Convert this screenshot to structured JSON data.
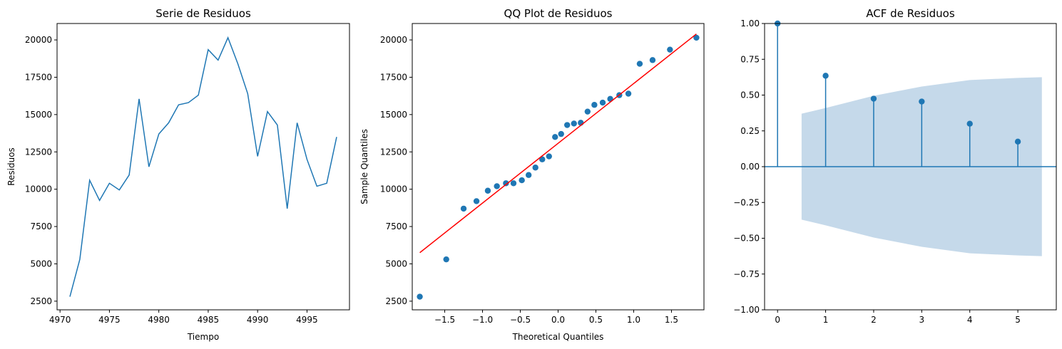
{
  "colors": {
    "series": "#1f77b4",
    "reference_line": "#ff0000",
    "confidence_band": "#c5d9ea",
    "background": "#ffffff"
  },
  "chart_data": [
    {
      "type": "line",
      "title": "Serie de Residuos",
      "xlabel": "Tiempo",
      "ylabel": "Residuos",
      "xlim": [
        4969.7,
        4999.3
      ],
      "ylim": [
        1920,
        21100
      ],
      "xticks": [
        4970,
        4975,
        4980,
        4985,
        4990,
        4995
      ],
      "yticks": [
        2500,
        5000,
        7500,
        10000,
        12500,
        15000,
        17500,
        20000
      ],
      "grid": false,
      "series": [
        {
          "x": [
            4971,
            4972,
            4973,
            4974,
            4975,
            4976,
            4977,
            4978,
            4979,
            4980,
            4981,
            4982,
            4983,
            4984,
            4985,
            4986,
            4987,
            4988,
            4989,
            4990,
            4991,
            4992,
            4993,
            4994,
            4995,
            4996,
            4997,
            4998
          ],
          "values": [
            2800,
            5300,
            10600,
            9250,
            10400,
            9950,
            10950,
            16050,
            11500,
            13700,
            14450,
            15650,
            15800,
            16300,
            19350,
            18650,
            20150,
            18400,
            16400,
            12200,
            15200,
            14300,
            8700,
            14450,
            12000,
            10200,
            10400,
            13500
          ]
        }
      ]
    },
    {
      "type": "scatter",
      "title": "QQ Plot de Residuos",
      "xlabel": "Theoretical Quantiles",
      "ylabel": "Sample Quantiles",
      "xlim": [
        -1.93,
        1.93
      ],
      "ylim": [
        1920,
        21100
      ],
      "xticks": [
        -1.5,
        -1.0,
        -0.5,
        0.0,
        0.5,
        1.0,
        1.5
      ],
      "xtick_labels": [
        "−1.5",
        "−1.0",
        "−0.5",
        "0.0",
        "0.5",
        "1.0",
        "1.5"
      ],
      "yticks": [
        2500,
        5000,
        7500,
        10000,
        12500,
        15000,
        17500,
        20000
      ],
      "grid": false,
      "series": [
        {
          "x": [
            -1.83,
            -1.48,
            -1.25,
            -1.08,
            -0.93,
            -0.81,
            -0.69,
            -0.59,
            -0.48,
            -0.39,
            -0.3,
            -0.21,
            -0.12,
            -0.04,
            0.04,
            0.12,
            0.21,
            0.3,
            0.39,
            0.48,
            0.59,
            0.69,
            0.81,
            0.93,
            1.08,
            1.25,
            1.48,
            1.83
          ],
          "values": [
            2800,
            5300,
            8700,
            9200,
            9900,
            10200,
            10400,
            10400,
            10600,
            10950,
            11450,
            12000,
            12200,
            13500,
            13700,
            14300,
            14400,
            14450,
            15200,
            15650,
            15800,
            16050,
            16300,
            16400,
            18400,
            18650,
            19350,
            20150
          ]
        }
      ],
      "reference_line": {
        "x": [
          -1.83,
          1.83
        ],
        "values": [
          5750,
          20400
        ]
      }
    },
    {
      "type": "stem",
      "title": "ACF de Residuos",
      "xlabel": "",
      "ylabel": "",
      "xlim": [
        -0.27,
        5.8
      ],
      "ylim": [
        -1.0,
        1.0
      ],
      "xticks": [
        0,
        1,
        2,
        3,
        4,
        5
      ],
      "yticks": [
        -1.0,
        -0.75,
        -0.5,
        -0.25,
        0.0,
        0.25,
        0.5,
        0.75,
        1.0
      ],
      "ytick_labels": [
        "−1.00",
        "−0.75",
        "−0.50",
        "−0.25",
        "0.00",
        "0.25",
        "0.50",
        "0.75",
        "1.00"
      ],
      "grid": false,
      "series": [
        {
          "x": [
            0,
            1,
            2,
            3,
            4,
            5
          ],
          "values": [
            1.0,
            0.635,
            0.475,
            0.455,
            0.3,
            0.175
          ]
        }
      ],
      "confidence_band": {
        "x": [
          0.5,
          1,
          2,
          3,
          4,
          5,
          5.5
        ],
        "upper": [
          0.37,
          0.41,
          0.495,
          0.56,
          0.605,
          0.62,
          0.625
        ]
      }
    }
  ]
}
